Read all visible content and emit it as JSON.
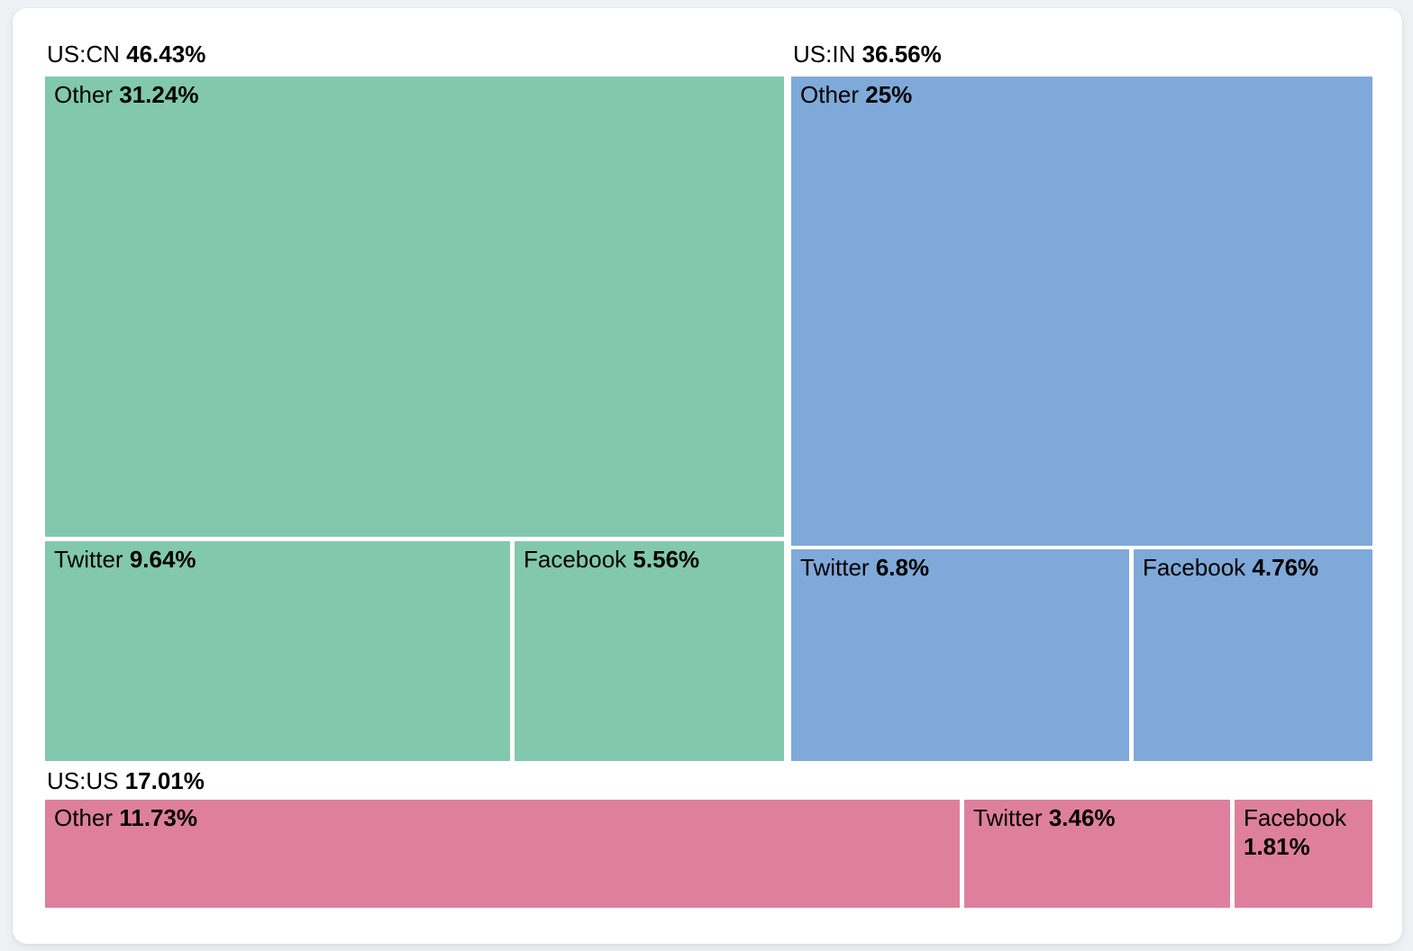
{
  "page": {
    "background_color": "#eff1f4",
    "card_background_color": "#ffffff"
  },
  "chart_data": {
    "type": "treemap",
    "title": "",
    "legend": "none",
    "unit": "%",
    "groups": [
      {
        "label": "US:CN",
        "value_pct": 46.43,
        "value_label": "46.43%",
        "color": "#82c8ae",
        "children": [
          {
            "label": "Other",
            "value_pct": 31.24,
            "value_label": "31.24%"
          },
          {
            "label": "Twitter",
            "value_pct": 9.64,
            "value_label": "9.64%"
          },
          {
            "label": "Facebook",
            "value_pct": 5.56,
            "value_label": "5.56%"
          }
        ]
      },
      {
        "label": "US:IN",
        "value_pct": 36.56,
        "value_label": "36.56%",
        "color": "#7fa9d8",
        "children": [
          {
            "label": "Other",
            "value_pct": 25,
            "value_label": "25%"
          },
          {
            "label": "Twitter",
            "value_pct": 6.8,
            "value_label": "6.8%"
          },
          {
            "label": "Facebook",
            "value_pct": 4.76,
            "value_label": "4.76%"
          }
        ]
      },
      {
        "label": "US:US",
        "value_pct": 17.01,
        "value_label": "17.01%",
        "color": "#de7f9e",
        "children": [
          {
            "label": "Other",
            "value_pct": 11.73,
            "value_label": "11.73%"
          },
          {
            "label": "Twitter",
            "value_pct": 3.46,
            "value_label": "3.46%"
          },
          {
            "label": "Facebook",
            "value_pct": 1.81,
            "value_label": "1.81%"
          }
        ]
      }
    ]
  }
}
